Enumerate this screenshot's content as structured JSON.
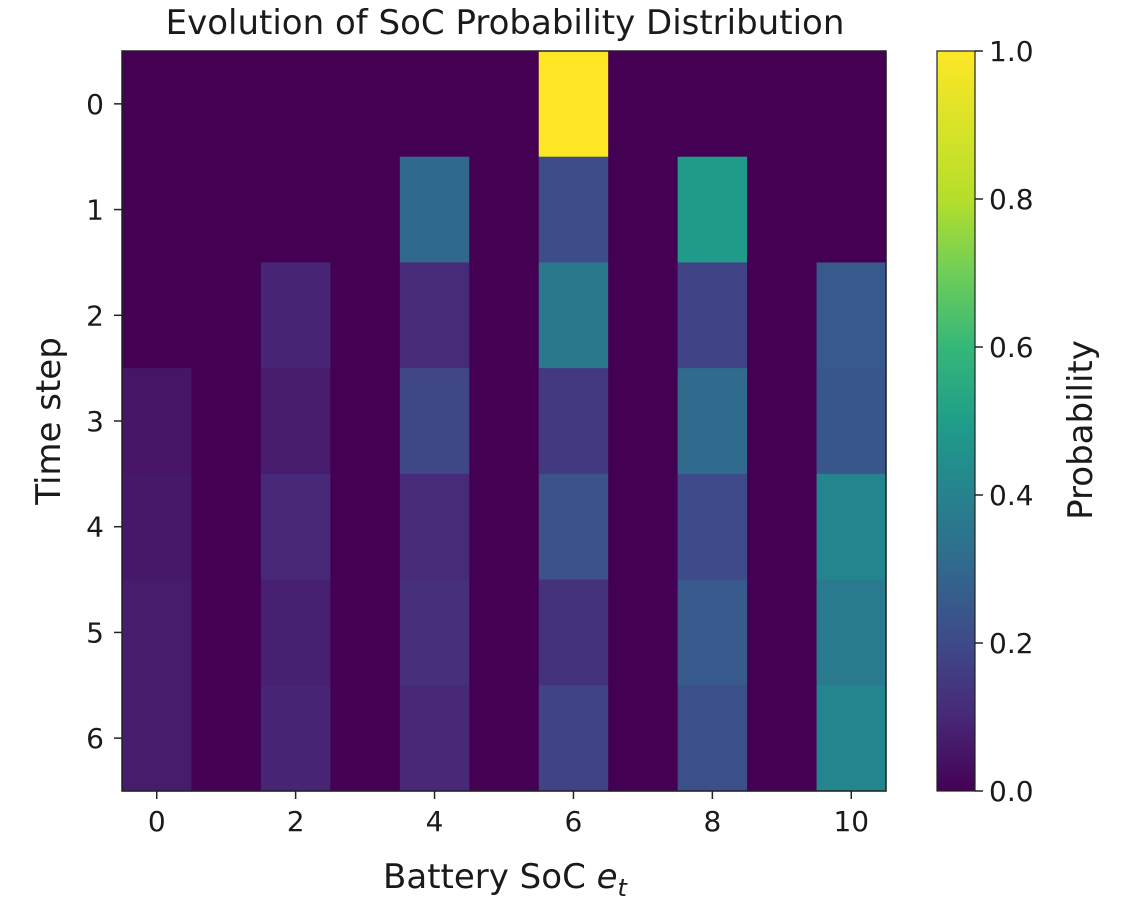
{
  "chart_data": {
    "type": "heatmap",
    "title": "Evolution of SoC Probability Distribution",
    "xlabel": "Battery SoC",
    "xlabel_symbol": "e",
    "xlabel_subscript": "t",
    "ylabel": "Time step",
    "x": [
      0,
      1,
      2,
      3,
      4,
      5,
      6,
      7,
      8,
      9,
      10
    ],
    "y": [
      0,
      1,
      2,
      3,
      4,
      5,
      6
    ],
    "x_ticks": [
      "0",
      "2",
      "4",
      "6",
      "8",
      "10"
    ],
    "y_ticks": [
      "0",
      "1",
      "2",
      "3",
      "4",
      "5",
      "6"
    ],
    "colormap": "viridis",
    "colorbar": {
      "label": "Probability",
      "range": [
        0.0,
        1.0
      ],
      "ticks": [
        "0.0",
        "0.2",
        "0.4",
        "0.6",
        "0.8",
        "1.0"
      ]
    },
    "values": [
      [
        0.0,
        0.0,
        0.0,
        0.0,
        0.0,
        0.0,
        1.0,
        0.0,
        0.0,
        0.0,
        0.0
      ],
      [
        0.0,
        0.0,
        0.0,
        0.0,
        0.3,
        0.0,
        0.21,
        0.0,
        0.49,
        0.0,
        0.0
      ],
      [
        0.0,
        0.0,
        0.09,
        0.0,
        0.11,
        0.0,
        0.36,
        0.0,
        0.18,
        0.0,
        0.25
      ],
      [
        0.05,
        0.0,
        0.07,
        0.0,
        0.19,
        0.0,
        0.15,
        0.0,
        0.31,
        0.0,
        0.24
      ],
      [
        0.06,
        0.0,
        0.1,
        0.0,
        0.11,
        0.0,
        0.23,
        0.0,
        0.2,
        0.0,
        0.41
      ],
      [
        0.07,
        0.0,
        0.08,
        0.0,
        0.12,
        0.0,
        0.13,
        0.0,
        0.25,
        0.0,
        0.37
      ],
      [
        0.07,
        0.0,
        0.09,
        0.0,
        0.1,
        0.0,
        0.18,
        0.0,
        0.22,
        0.0,
        0.41
      ]
    ]
  }
}
